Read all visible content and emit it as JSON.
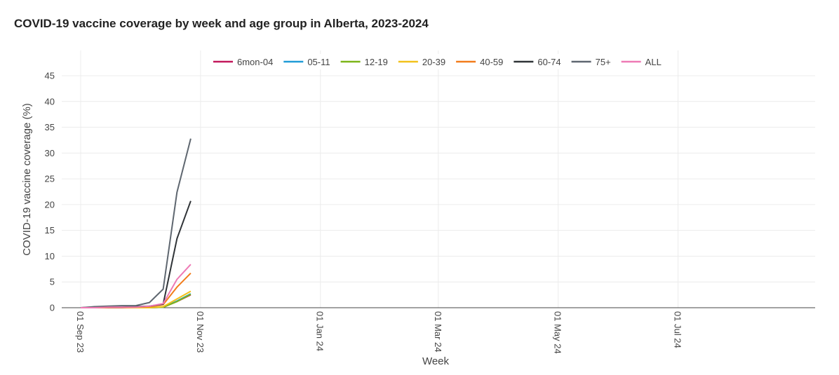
{
  "chart_data": {
    "type": "line",
    "title": "COVID-19 vaccine coverage by week and age group in Alberta, 2023-2024",
    "xlabel": "Week",
    "ylabel": "COVID-19 vaccine coverage (%)",
    "ylim": [
      0,
      45
    ],
    "yticks": [
      "0",
      "5",
      "10",
      "15",
      "20",
      "25",
      "30",
      "35",
      "40",
      "45"
    ],
    "xlim": [
      "2023-09-01",
      "2024-08-28"
    ],
    "xticks": [
      {
        "date": "2023-09-01",
        "label": "01 Sep 23"
      },
      {
        "date": "2023-11-01",
        "label": "01 Nov 23"
      },
      {
        "date": "2024-01-01",
        "label": "01 Jan 24"
      },
      {
        "date": "2024-03-01",
        "label": "01 Mar 24"
      },
      {
        "date": "2024-05-01",
        "label": "01 May 24"
      },
      {
        "date": "2024-07-01",
        "label": "01 Jul 24"
      }
    ],
    "grid": true,
    "legend_position": "top",
    "x": [
      "2023-09-01",
      "2023-09-08",
      "2023-09-15",
      "2023-09-22",
      "2023-09-29",
      "2023-10-06",
      "2023-10-13",
      "2023-10-20",
      "2023-10-27"
    ],
    "series": [
      {
        "name": "6mon-04",
        "color": "#c2185b",
        "values": [
          0.0,
          0.0,
          0.0,
          0.0,
          0.0,
          0.0,
          0.1,
          1.2,
          2.5
        ]
      },
      {
        "name": "05-11",
        "color": "#1f9bd7",
        "values": [
          0.0,
          0.0,
          0.0,
          0.0,
          0.0,
          0.0,
          0.1,
          1.3,
          2.7
        ]
      },
      {
        "name": "12-19",
        "color": "#7cb518",
        "values": [
          0.0,
          0.0,
          0.0,
          0.0,
          0.0,
          0.0,
          0.1,
          1.2,
          2.6
        ]
      },
      {
        "name": "20-39",
        "color": "#f2c11b",
        "values": [
          0.0,
          0.0,
          0.0,
          0.0,
          0.0,
          0.0,
          0.2,
          1.7,
          3.2
        ]
      },
      {
        "name": "40-59",
        "color": "#f27c1b",
        "values": [
          0.0,
          0.0,
          0.0,
          0.0,
          0.1,
          0.2,
          0.6,
          4.0,
          6.7
        ]
      },
      {
        "name": "60-74",
        "color": "#2f3337",
        "values": [
          0.0,
          0.1,
          0.1,
          0.1,
          0.2,
          0.3,
          0.7,
          13.4,
          20.7
        ]
      },
      {
        "name": "75+",
        "color": "#5f6770",
        "values": [
          0.0,
          0.2,
          0.3,
          0.4,
          0.4,
          1.0,
          3.6,
          22.4,
          32.8
        ]
      },
      {
        "name": "ALL",
        "color": "#ee7ab5",
        "values": [
          0.0,
          0.0,
          0.1,
          0.1,
          0.1,
          0.3,
          0.8,
          5.5,
          8.4
        ]
      }
    ]
  }
}
